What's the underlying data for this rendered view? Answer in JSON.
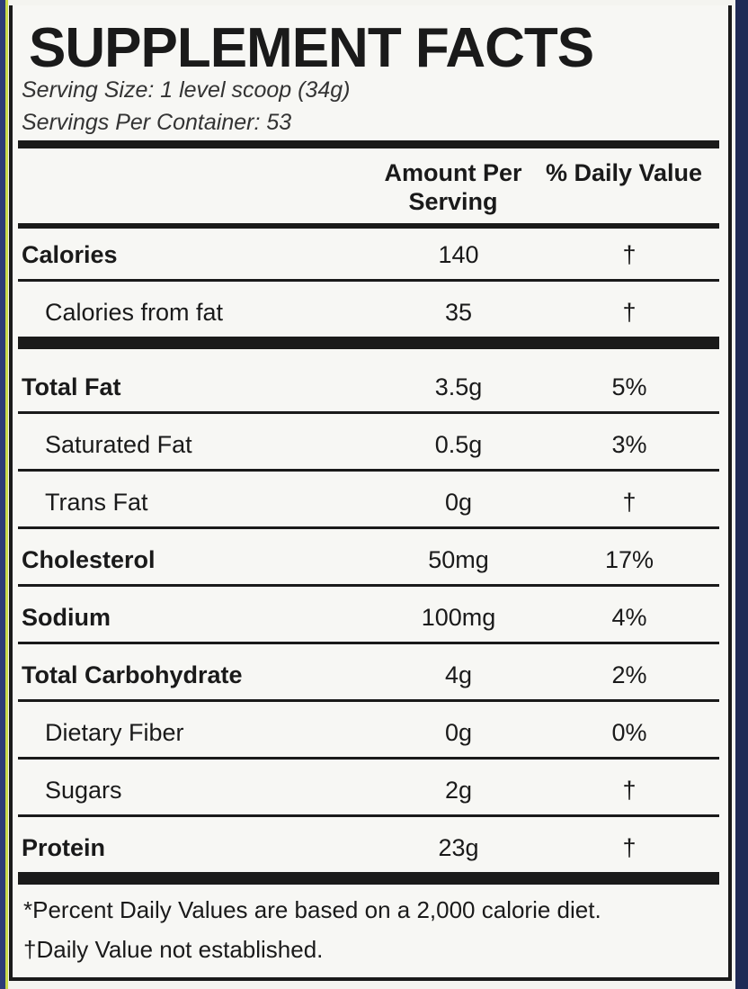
{
  "label": {
    "title": "SUPPLEMENT FACTS",
    "serving_size": "Serving Size: 1 level scoop (34g)",
    "servings_per_container": "Servings Per Container: 53",
    "columns": [
      "Amount Per Serving",
      "% Daily Value"
    ],
    "sections": [
      [
        {
          "name": "Calories",
          "amount": "140",
          "daily_value": "†",
          "subrows": [
            {
              "name": "Calories from fat",
              "amount": "35",
              "daily_value": "†"
            }
          ]
        }
      ],
      [
        {
          "name": "Total Fat",
          "amount": "3.5g",
          "daily_value": "5%",
          "subrows": [
            {
              "name": "Saturated Fat",
              "amount": "0.5g",
              "daily_value": "3%"
            },
            {
              "name": "Trans Fat",
              "amount": "0g",
              "daily_value": "†"
            }
          ]
        },
        {
          "name": "Cholesterol",
          "amount": "50mg",
          "daily_value": "17%",
          "subrows": []
        },
        {
          "name": "Sodium",
          "amount": "100mg",
          "daily_value": "4%",
          "subrows": []
        },
        {
          "name": "Total Carbohydrate",
          "amount": "4g",
          "daily_value": "2%",
          "subrows": [
            {
              "name": "Dietary Fiber",
              "amount": "0g",
              "daily_value": "0%"
            },
            {
              "name": "Sugars",
              "amount": "2g",
              "daily_value": "†"
            }
          ]
        },
        {
          "name": "Protein",
          "amount": "23g",
          "daily_value": "†",
          "subrows": []
        }
      ]
    ],
    "footnotes": [
      "*Percent Daily Values are based on a 2,000 calorie diet.",
      "†Daily Value not established."
    ]
  }
}
